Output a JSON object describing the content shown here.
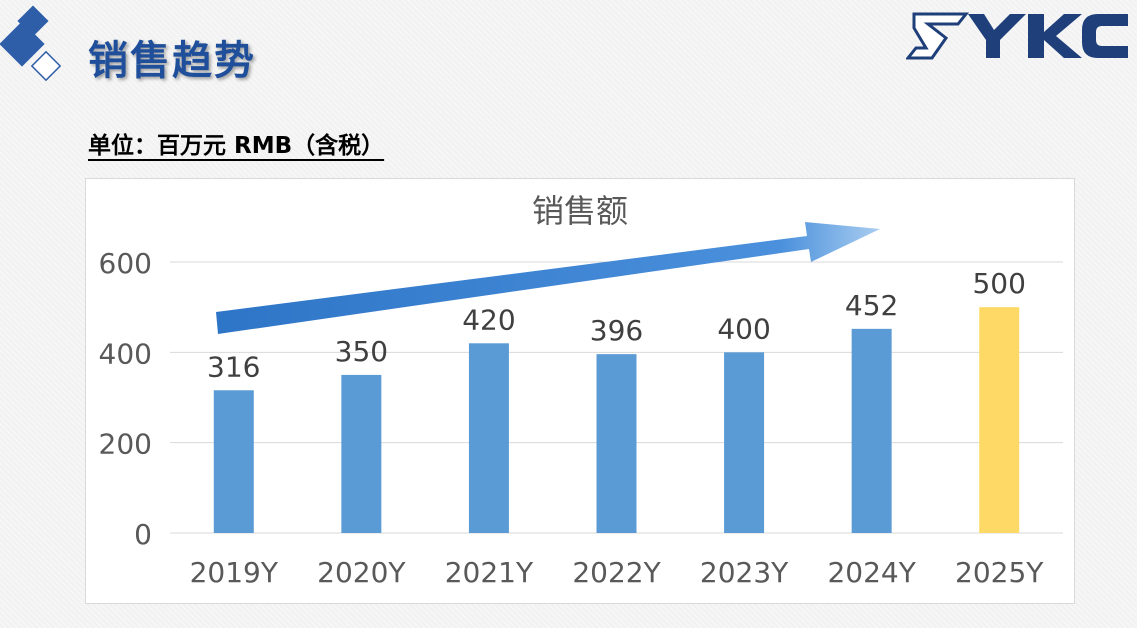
{
  "header": {
    "title": "销售趋势",
    "unit_label": "单位：百万元 RMB（含税）",
    "brand_logo_text": "SYKC",
    "logo_mark_color": "#2f5ea8"
  },
  "chart_data": {
    "type": "bar",
    "title": "销售额",
    "categories": [
      "2019Y",
      "2020Y",
      "2021Y",
      "2022Y",
      "2023Y",
      "2024Y",
      "2025Y"
    ],
    "values": [
      316,
      350,
      420,
      396,
      400,
      452,
      500
    ],
    "data_labels": [
      "316",
      "350",
      "420",
      "396",
      "400",
      "452",
      "500"
    ],
    "ylim": [
      0,
      600
    ],
    "yticks": [
      0,
      200,
      400,
      600
    ],
    "ytick_labels": [
      "0",
      "200",
      "400",
      "600"
    ],
    "grid": true,
    "xlabel": "",
    "ylabel": "",
    "bar_color": "#5b9bd5",
    "highlight_color": "#ffd966",
    "highlight_index": 6,
    "trend_arrow": true
  }
}
